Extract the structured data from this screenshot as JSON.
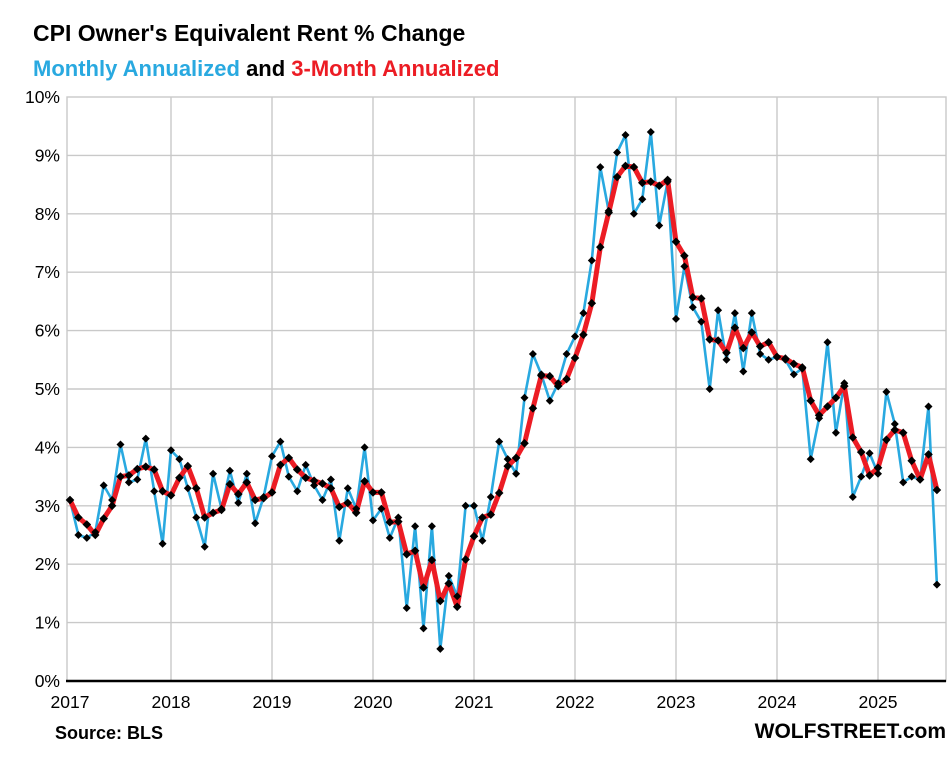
{
  "header": {
    "title": "CPI Owner's Equivalent Rent % Change",
    "subtitle_parts": [
      {
        "text": "Monthly Annualized",
        "color": "#29A9E0"
      },
      {
        "text": " and ",
        "color": "#000000"
      },
      {
        "text": "3-Month Annualized",
        "color": "#EC1C24"
      }
    ]
  },
  "footer": {
    "source": "Source: BLS",
    "branding": "WOLFSTREET.com"
  },
  "chart_data": {
    "type": "line",
    "title": "CPI Owner's Equivalent Rent % Change",
    "subtitle": "Monthly Annualized and 3-Month Annualized",
    "legend_position": "in-subtitle",
    "grid": true,
    "x_frequency": "monthly",
    "x_first_year": 2017,
    "x_tick_labels": [
      "2017",
      "2018",
      "2019",
      "2020",
      "2021",
      "2022",
      "2023",
      "2024",
      "2025"
    ],
    "y_tick_labels": [
      "0%",
      "1%",
      "2%",
      "3%",
      "4%",
      "5%",
      "6%",
      "7%",
      "8%",
      "9%",
      "10%"
    ],
    "ylim": [
      0,
      10
    ],
    "colors": {
      "grid": "#c9c9c9",
      "axis": "#000000",
      "marker": "#000000",
      "tick_text": "#000000"
    },
    "series": [
      {
        "name": "Monthly Annualized",
        "color": "#29A9E0",
        "line_width": 2.6,
        "marker": "diamond",
        "marker_size": 4,
        "values": [
          3.1,
          2.5,
          2.45,
          2.55,
          3.35,
          3.1,
          4.05,
          3.4,
          3.45,
          4.15,
          3.25,
          2.35,
          3.95,
          3.8,
          3.3,
          2.8,
          2.3,
          3.55,
          2.95,
          3.6,
          3.05,
          3.55,
          2.7,
          3.15,
          3.85,
          4.1,
          3.5,
          3.25,
          3.7,
          3.35,
          3.1,
          3.45,
          2.4,
          3.3,
          2.95,
          4.0,
          2.75,
          2.95,
          2.45,
          2.8,
          1.25,
          2.65,
          0.9,
          2.65,
          0.55,
          1.8,
          1.45,
          3.0,
          3.0,
          2.4,
          3.15,
          4.1,
          3.8,
          3.55,
          4.85,
          5.6,
          5.25,
          4.8,
          5.1,
          5.6,
          5.9,
          6.3,
          7.2,
          8.8,
          8.05,
          9.05,
          9.35,
          8.0,
          8.25,
          9.4,
          7.8,
          8.55,
          6.2,
          7.1,
          6.4,
          6.15,
          5.0,
          6.35,
          5.5,
          6.3,
          5.3,
          6.3,
          5.6,
          5.5,
          5.55,
          5.5,
          5.25,
          5.35,
          3.8,
          4.5,
          5.8,
          4.25,
          5.1,
          3.15,
          3.5,
          3.9,
          3.55,
          4.95,
          4.4,
          3.4,
          3.5,
          3.45,
          4.7,
          1.65
        ]
      },
      {
        "name": "3-Month Annualized",
        "color": "#EC1C24",
        "line_width": 5,
        "marker": "diamond",
        "marker_size": 4.3,
        "values": [
          3.1,
          2.8,
          2.68,
          2.5,
          2.78,
          3.0,
          3.5,
          3.52,
          3.63,
          3.67,
          3.62,
          3.25,
          3.18,
          3.48,
          3.68,
          3.3,
          2.8,
          2.88,
          2.93,
          3.37,
          3.2,
          3.4,
          3.1,
          3.13,
          3.23,
          3.7,
          3.82,
          3.62,
          3.48,
          3.43,
          3.38,
          3.3,
          2.98,
          3.05,
          2.88,
          3.42,
          3.23,
          3.23,
          2.72,
          2.73,
          2.17,
          2.23,
          1.6,
          2.07,
          1.37,
          1.67,
          1.27,
          2.08,
          2.48,
          2.8,
          2.85,
          3.22,
          3.68,
          3.82,
          4.07,
          4.67,
          5.23,
          5.22,
          5.05,
          5.17,
          5.53,
          5.93,
          6.47,
          7.43,
          8.02,
          8.63,
          8.82,
          8.8,
          8.53,
          8.55,
          8.48,
          8.58,
          7.52,
          7.28,
          6.57,
          6.55,
          5.85,
          5.83,
          5.62,
          6.05,
          5.7,
          5.97,
          5.73,
          5.8,
          5.55,
          5.52,
          5.43,
          5.37,
          4.8,
          4.55,
          4.7,
          4.85,
          5.05,
          4.17,
          3.92,
          3.52,
          3.65,
          4.13,
          4.3,
          4.25,
          3.77,
          3.45,
          3.88,
          3.27
        ]
      }
    ]
  }
}
